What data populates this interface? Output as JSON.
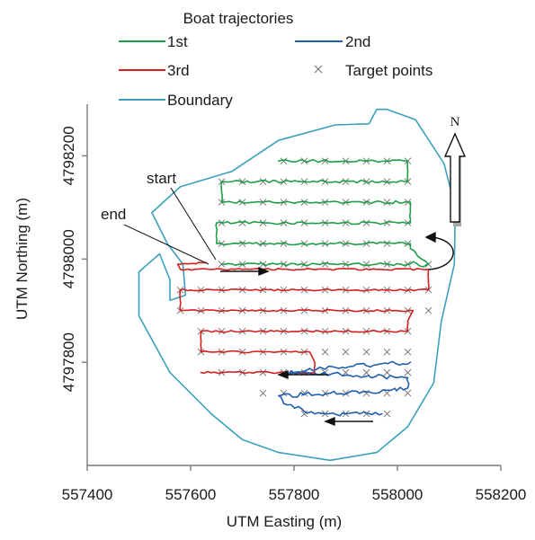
{
  "chart_data": {
    "type": "line",
    "legend": {
      "title": "Boat trajectories",
      "placement": "top",
      "entries": [
        {
          "label": "1st",
          "kind": "line",
          "color": "#1e9e4a"
        },
        {
          "label": "2nd",
          "kind": "line",
          "color": "#1f5fae"
        },
        {
          "label": "3rd",
          "kind": "line",
          "color": "#d42020"
        },
        {
          "label": "Target points",
          "kind": "marker",
          "color": "#6e6e6e"
        },
        {
          "label": "Boundary",
          "kind": "line",
          "color": "#3aa0bc"
        }
      ]
    },
    "xlabel": "UTM Easting (m)",
    "ylabel": "UTM Northing (m)",
    "xlim": [
      557400,
      558200
    ],
    "ylim": [
      4797600,
      4798300
    ],
    "xticks": [
      557400,
      557600,
      557800,
      558000,
      558200
    ],
    "yticks": [
      4797800,
      4798000,
      4798200
    ],
    "xtick_labels": [
      "557400",
      "557600",
      "557800",
      "558000",
      "558200"
    ],
    "ytick_labels": [
      "4797800",
      "4798000",
      "4798200"
    ],
    "grid": false,
    "annotations": [
      {
        "text": "start",
        "x": 557600,
        "y": 4798150
      },
      {
        "text": "end",
        "x": 557540,
        "y": 4798080
      },
      {
        "text": "N",
        "kind": "north-arrow"
      }
    ],
    "series": [
      {
        "name": "Boundary",
        "color": "#3aa0bc",
        "closed": true,
        "points": [
          [
            557980,
            4798290
          ],
          [
            558035,
            4798270
          ],
          [
            558090,
            4798185
          ],
          [
            558112,
            4798100
          ],
          [
            558110,
            4797990
          ],
          [
            558085,
            4797880
          ],
          [
            558070,
            4797760
          ],
          [
            558020,
            4797675
          ],
          [
            557960,
            4797625
          ],
          [
            557870,
            4797610
          ],
          [
            557770,
            4797625
          ],
          [
            557700,
            4797650
          ],
          [
            557640,
            4797700
          ],
          [
            557560,
            4797780
          ],
          [
            557500,
            4797890
          ],
          [
            557500,
            4797975
          ],
          [
            557540,
            4798010
          ],
          [
            557560,
            4797960
          ],
          [
            557560,
            4797920
          ],
          [
            557590,
            4797930
          ],
          [
            557585,
            4797990
          ],
          [
            557555,
            4798030
          ],
          [
            557525,
            4798090
          ],
          [
            557580,
            4798140
          ],
          [
            557680,
            4798170
          ],
          [
            557770,
            4798230
          ],
          [
            557880,
            4798260
          ],
          [
            557945,
            4798262
          ],
          [
            557960,
            4798290
          ]
        ]
      },
      {
        "name": "1st",
        "color": "#1e9e4a",
        "jitter": 3,
        "points": [
          [
            557660,
            4797990
          ],
          [
            557780,
            4797990
          ],
          [
            557870,
            4797990
          ],
          [
            557960,
            4797990
          ],
          [
            558020,
            4797990
          ],
          [
            558030,
            4797995
          ],
          [
            558050,
            4797985
          ],
          [
            558060,
            4797990
          ],
          [
            558025,
            4798020
          ],
          [
            558025,
            4798030
          ],
          [
            557960,
            4798030
          ],
          [
            557850,
            4798030
          ],
          [
            557720,
            4798030
          ],
          [
            557650,
            4798030
          ],
          [
            557650,
            4798050
          ],
          [
            557650,
            4798070
          ],
          [
            557750,
            4798070
          ],
          [
            557870,
            4798070
          ],
          [
            557960,
            4798070
          ],
          [
            558025,
            4798070
          ],
          [
            558025,
            4798090
          ],
          [
            558025,
            4798110
          ],
          [
            557900,
            4798110
          ],
          [
            557780,
            4798110
          ],
          [
            557680,
            4798110
          ],
          [
            557660,
            4798110
          ],
          [
            557660,
            4798130
          ],
          [
            557660,
            4798150
          ],
          [
            557780,
            4798150
          ],
          [
            557880,
            4798150
          ],
          [
            558020,
            4798150
          ],
          [
            558020,
            4798170
          ],
          [
            558020,
            4798190
          ],
          [
            557900,
            4798190
          ],
          [
            557770,
            4798190
          ]
        ]
      },
      {
        "name": "3rd",
        "color": "#d42020",
        "jitter": 2,
        "points": [
          [
            557620,
            4797780
          ],
          [
            557700,
            4797780
          ],
          [
            557770,
            4797780
          ],
          [
            557840,
            4797780
          ],
          [
            557840,
            4797800
          ],
          [
            557830,
            4797820
          ],
          [
            557740,
            4797820
          ],
          [
            557650,
            4797820
          ],
          [
            557620,
            4797820
          ],
          [
            557620,
            4797860
          ],
          [
            557720,
            4797860
          ],
          [
            557850,
            4797860
          ],
          [
            557960,
            4797860
          ],
          [
            558020,
            4797860
          ],
          [
            558020,
            4797880
          ],
          [
            558030,
            4797900
          ],
          [
            557900,
            4797900
          ],
          [
            557780,
            4797900
          ],
          [
            557650,
            4797900
          ],
          [
            557580,
            4797900
          ],
          [
            557580,
            4797920
          ],
          [
            557580,
            4797940
          ],
          [
            557700,
            4797940
          ],
          [
            557830,
            4797940
          ],
          [
            557950,
            4797940
          ],
          [
            558060,
            4797940
          ],
          [
            558060,
            4797960
          ],
          [
            558060,
            4797980
          ],
          [
            557960,
            4797980
          ],
          [
            557820,
            4797980
          ],
          [
            557700,
            4797980
          ],
          [
            557580,
            4797980
          ],
          [
            557575,
            4797990
          ],
          [
            557630,
            4797993
          ]
        ]
      },
      {
        "name": "2nd",
        "color": "#1f5fae",
        "jitter": 5,
        "points": [
          [
            557970,
            4797700
          ],
          [
            557900,
            4797700
          ],
          [
            557840,
            4797700
          ],
          [
            557780,
            4797720
          ],
          [
            557770,
            4797735
          ],
          [
            557870,
            4797740
          ],
          [
            557960,
            4797740
          ],
          [
            558020,
            4797750
          ],
          [
            558020,
            4797770
          ],
          [
            557900,
            4797775
          ],
          [
            557800,
            4797780
          ],
          [
            557780,
            4797778
          ],
          [
            557880,
            4797790
          ],
          [
            557960,
            4797795
          ],
          [
            558025,
            4797800
          ]
        ]
      },
      {
        "name": "Target points",
        "color": "#6e6e6e",
        "rows": [
          {
            "y": 4798190,
            "x": [
              557780,
              557820,
              557860,
              557900,
              557940,
              557980,
              558020
            ]
          },
          {
            "y": 4798150,
            "x": [
              557660,
              557700,
              557740,
              557780,
              557820,
              557860,
              557900,
              557940,
              557980,
              558020
            ]
          },
          {
            "y": 4798110,
            "x": [
              557660,
              557700,
              557740,
              557780,
              557820,
              557860,
              557900,
              557940,
              557980,
              558020
            ]
          },
          {
            "y": 4798070,
            "x": [
              557660,
              557700,
              557740,
              557780,
              557820,
              557860,
              557900,
              557940,
              557980,
              558020
            ]
          },
          {
            "y": 4798030,
            "x": [
              557660,
              557700,
              557740,
              557780,
              557820,
              557860,
              557900,
              557940,
              557980,
              558020
            ]
          },
          {
            "y": 4797990,
            "x": [
              557660,
              557700,
              557740,
              557780,
              557820,
              557860,
              557900,
              557940,
              557980,
              558020,
              558060
            ]
          },
          {
            "y": 4797940,
            "x": [
              557580,
              557620,
              557660,
              557700,
              557740,
              557780,
              557820,
              557860,
              557900,
              557940,
              557980,
              558020,
              558060
            ]
          },
          {
            "y": 4797900,
            "x": [
              557580,
              557620,
              557660,
              557700,
              557740,
              557780,
              557820,
              557860,
              557900,
              557940,
              557980,
              558020,
              558060
            ]
          },
          {
            "y": 4797860,
            "x": [
              557620,
              557660,
              557700,
              557740,
              557780,
              557820,
              557860,
              557900,
              557940,
              557980,
              558020
            ]
          },
          {
            "y": 4797820,
            "x": [
              557620,
              557660,
              557700,
              557740,
              557780,
              557820,
              557860,
              557900,
              557940,
              557980,
              558020
            ]
          },
          {
            "y": 4797780,
            "x": [
              557660,
              557700,
              557740,
              557780,
              557820,
              557860,
              557900,
              557940,
              557980,
              558020
            ]
          },
          {
            "y": 4797740,
            "x": [
              557740,
              557780,
              557820,
              557860,
              557900,
              557940,
              557980,
              558020
            ]
          },
          {
            "y": 4797700,
            "x": [
              557820,
              557860,
              557900,
              557940,
              557980
            ]
          }
        ]
      }
    ]
  }
}
